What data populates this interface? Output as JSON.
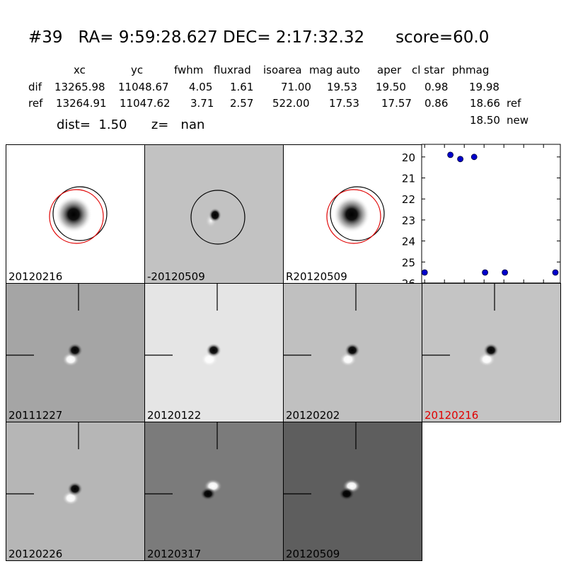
{
  "header": {
    "id": "#39",
    "ra_label": "RA= 9:59:28.627",
    "dec_label": "DEC= 2:17:32.32",
    "score_label": "score=60.0"
  },
  "table": {
    "columns": [
      "xc",
      "yc",
      "fwhm",
      "fluxrad",
      "isoarea",
      "mag auto",
      "aper",
      "cl star",
      "phmag"
    ],
    "rows": [
      {
        "name": "dif",
        "values": [
          "13265.98",
          "11048.67",
          "4.05",
          "1.61",
          "71.00",
          "19.53",
          "19.50",
          "0.98",
          "19.98"
        ],
        "suffix": ""
      },
      {
        "name": "ref",
        "values": [
          "13264.91",
          "11047.62",
          "3.71",
          "2.57",
          "522.00",
          "17.53",
          "17.57",
          "0.86",
          "18.66"
        ],
        "suffix": "ref"
      }
    ],
    "extra": {
      "value": "18.50",
      "suffix": "new"
    }
  },
  "dist_line": {
    "dist_label": "dist=",
    "dist_value": "1.50",
    "z_label": "z=",
    "z_value": "nan"
  },
  "colors": {
    "ref_circle": "#000000",
    "new_circle": "#e00000",
    "points": "#0000cc",
    "highlight_label": "#e00000"
  },
  "top_panels": [
    {
      "label": "20120216",
      "kind": "ref",
      "background": "#ffffff",
      "circles": [
        "black",
        "red"
      ]
    },
    {
      "label": "-20120509",
      "kind": "diff",
      "background": "#c2c2c2",
      "circles": [
        "black"
      ]
    },
    {
      "label": "R20120509",
      "kind": "ref",
      "background": "#ffffff",
      "circles": [
        "black",
        "red"
      ]
    }
  ],
  "stamps": [
    {
      "label": "20111227",
      "background": "#a5a5a5",
      "dipole": "dark-top-right",
      "highlight": false
    },
    {
      "label": "20120122",
      "background": "#e5e5e5",
      "dipole": "dark-top-right",
      "highlight": false
    },
    {
      "label": "20120202",
      "background": "#c0c0c0",
      "dipole": "dark-top-right",
      "highlight": false
    },
    {
      "label": "20120216",
      "background": "#c4c4c4",
      "dipole": "dark-top-right",
      "highlight": true
    },
    {
      "label": "20120226",
      "background": "#b6b6b6",
      "dipole": "dark-top-right",
      "highlight": false
    },
    {
      "label": "20120317",
      "background": "#7b7b7b",
      "dipole": "bright-top",
      "highlight": false
    },
    {
      "label": "20120509",
      "background": "#5e5e5e",
      "dipole": "bright-top",
      "highlight": false
    }
  ],
  "chart_data": {
    "type": "scatter",
    "title": "",
    "xlabel": "",
    "ylabel": "",
    "xlim": [
      -3,
      137
    ],
    "ylim": [
      26,
      19.4
    ],
    "y_inverted": true,
    "x_ticks": [
      "0",
      "20",
      "40",
      "60",
      "80",
      "100",
      "120"
    ],
    "y_ticks": [
      "20",
      "21",
      "22",
      "23",
      "24",
      "25",
      "26"
    ],
    "points": {
      "x": [
        0,
        26,
        36,
        50,
        61,
        81,
        132
      ],
      "y": [
        25.5,
        19.9,
        20.1,
        20.0,
        25.5,
        25.5,
        25.5
      ]
    },
    "marker_color": "#0000cc"
  }
}
